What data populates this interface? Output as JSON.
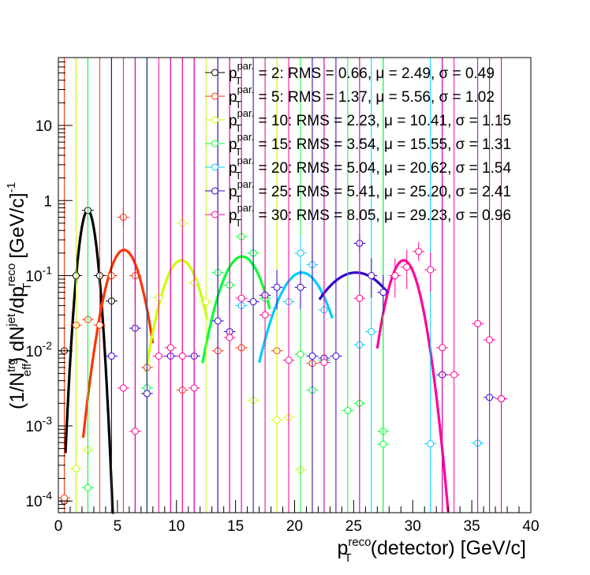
{
  "chart_data": {
    "type": "scatter",
    "title": "",
    "xlabel": {
      "main": "p",
      "sub": "T",
      "sup": "reco",
      "rest": "(detector) [GeV/c]"
    },
    "ylabel": {
      "pre": "(1/N",
      "sup1": "trg",
      "sub1": "eff",
      "mid1": ") dN",
      "sup2": "jet",
      "mid2": "/dp",
      "sup3": "reco",
      "sub3": "T",
      "mid3": " [GeV/c]",
      "sup4": "-1"
    },
    "xlim": [
      0,
      40
    ],
    "ylim": [
      7e-05,
      80
    ],
    "yscale": "log",
    "grid": false,
    "legend_position": "top-right",
    "x_ticks": [
      0,
      5,
      10,
      15,
      20,
      25,
      30,
      35,
      40
    ],
    "x_tick_labels": [
      "0",
      "5",
      "10",
      "15",
      "20",
      "25",
      "30",
      "35",
      "40"
    ],
    "y_ticks": [
      0.0001,
      0.001,
      0.01,
      0.1,
      1,
      10
    ],
    "y_tick_labels": [
      {
        "base": "10",
        "exp": "-4"
      },
      {
        "base": "10",
        "exp": "-3"
      },
      {
        "base": "10",
        "exp": "-2"
      },
      {
        "base": "10",
        "exp": "-1"
      },
      {
        "base": "1",
        "exp": ""
      },
      {
        "base": "10",
        "exp": ""
      }
    ],
    "series": [
      {
        "name": "= 2: RMS = 0.66, μ = 2.49, σ = 0.49",
        "legend_symbol": {
          "main": "p",
          "sub": "T",
          "sup": "par."
        },
        "color": "#000000",
        "fit": {
          "mu": 2.49,
          "sigma": 0.49,
          "amp": 0.74,
          "range": [
            0.6,
            4.7
          ]
        },
        "points": [
          {
            "x": 0.5,
            "y": 0.0001
          },
          {
            "x": 0.5,
            "y": 0.01
          },
          {
            "x": 1.5,
            "y": 0.1
          },
          {
            "x": 2.5,
            "y": 0.74
          },
          {
            "x": 3.5,
            "y": 0.1
          },
          {
            "x": 4.5,
            "y": 0.046
          }
        ]
      },
      {
        "name": "= 5: RMS = 1.37, μ = 5.56, σ = 1.02",
        "legend_symbol": {
          "main": "p",
          "sub": "T",
          "sup": "par."
        },
        "color": "#ff3300",
        "fit": {
          "mu": 5.56,
          "sigma": 1.02,
          "amp": 0.22,
          "range": [
            2.1,
            8.0
          ]
        },
        "points": [
          {
            "x": 1.5,
            "y": 0.022
          },
          {
            "x": 2.5,
            "y": 0.026
          },
          {
            "x": 3.5,
            "y": 0.022
          },
          {
            "x": 4.5,
            "y": 0.1
          },
          {
            "x": 5.5,
            "y": 0.6
          },
          {
            "x": 6.5,
            "y": 0.1
          },
          {
            "x": 7.5,
            "y": 0.006
          },
          {
            "x": 10.5,
            "y": 0.003
          },
          {
            "x": 13.5,
            "y": 0.01
          },
          {
            "x": 15.5,
            "y": 0.011
          },
          {
            "x": 18.5,
            "y": 0.01
          },
          {
            "x": 21.5,
            "y": 0.0068
          },
          {
            "x": 0.5,
            "y": 0.00011
          }
        ]
      },
      {
        "name": "= 10: RMS = 2.23, μ = 10.41, σ = 1.15",
        "legend_symbol": {
          "main": "p",
          "sub": "T",
          "sup": "par."
        },
        "color": "#ccff00",
        "fit": {
          "mu": 10.41,
          "sigma": 1.15,
          "amp": 0.16,
          "range": [
            7.4,
            12.6
          ]
        },
        "points": [
          {
            "x": 1.5,
            "y": 0.00027
          },
          {
            "x": 2.5,
            "y": 0.00048
          },
          {
            "x": 7.5,
            "y": 0.0027
          },
          {
            "x": 8.5,
            "y": 0.051
          },
          {
            "x": 10.5,
            "y": 0.5
          },
          {
            "x": 11.5,
            "y": 0.08
          },
          {
            "x": 12.5,
            "y": 0.045
          },
          {
            "x": 16.5,
            "y": 0.0022
          },
          {
            "x": 18.5,
            "y": 0.0012
          },
          {
            "x": 19.5,
            "y": 0.0013
          },
          {
            "x": 20.5,
            "y": 0.00026
          }
        ]
      },
      {
        "name": "= 15: RMS = 3.54, μ = 15.55, σ = 1.31",
        "legend_symbol": {
          "main": "p",
          "sub": "T",
          "sup": "par."
        },
        "color": "#00ff33",
        "fit": {
          "mu": 15.55,
          "sigma": 1.31,
          "amp": 0.18,
          "range": [
            12.2,
            17.9
          ]
        },
        "points": [
          {
            "x": 2.5,
            "y": 0.00015
          },
          {
            "x": 7.5,
            "y": 0.0032
          },
          {
            "x": 13.5,
            "y": 0.11
          },
          {
            "x": 14.5,
            "y": 0.075
          },
          {
            "x": 15.5,
            "y": 0.33
          },
          {
            "x": 16.5,
            "y": 0.2
          },
          {
            "x": 17.5,
            "y": 0.05
          },
          {
            "x": 20.5,
            "y": 0.009
          },
          {
            "x": 21.5,
            "y": 0.003
          },
          {
            "x": 22.5,
            "y": 0.0075
          },
          {
            "x": 24.5,
            "y": 0.0016
          },
          {
            "x": 25.5,
            "y": 0.002
          },
          {
            "x": 27.5,
            "y": 0.00085
          },
          {
            "x": 27.5,
            "y": 0.00057
          }
        ]
      },
      {
        "name": "= 20: RMS = 5.04, μ = 20.62, σ = 1.54",
        "legend_symbol": {
          "main": "p",
          "sub": "T",
          "sup": "par."
        },
        "color": "#00ccff",
        "fit": {
          "mu": 20.62,
          "sigma": 1.54,
          "amp": 0.11,
          "range": [
            17.0,
            23.2
          ]
        },
        "points": [
          {
            "x": 15.5,
            "y": 0.04
          },
          {
            "x": 19.5,
            "y": 0.045
          },
          {
            "x": 20.5,
            "y": 0.2
          },
          {
            "x": 21.5,
            "y": 0.14
          },
          {
            "x": 22.5,
            "y": 0.035
          },
          {
            "x": 25.5,
            "y": 0.012
          },
          {
            "x": 26.5,
            "y": 0.018
          },
          {
            "x": 31.5,
            "y": 0.00058
          },
          {
            "x": 35.5,
            "y": 0.00059
          }
        ]
      },
      {
        "name": "= 25: RMS = 5.41, μ = 25.20, σ = 2.41",
        "legend_symbol": {
          "main": "p",
          "sub": "T",
          "sup": "par."
        },
        "color": "#3300cc",
        "fit": {
          "mu": 25.2,
          "sigma": 2.41,
          "amp": 0.11,
          "range": [
            22.1,
            27.8
          ]
        },
        "points": [
          {
            "x": 4.5,
            "y": 0.0085
          },
          {
            "x": 6.5,
            "y": 0.02
          },
          {
            "x": 7.5,
            "y": 0.0027
          },
          {
            "x": 9.5,
            "y": 0.0085
          },
          {
            "x": 11.5,
            "y": 0.0085
          },
          {
            "x": 13.5,
            "y": 0.025
          },
          {
            "x": 14.5,
            "y": 0.018
          },
          {
            "x": 16.5,
            "y": 0.045
          },
          {
            "x": 17.5,
            "y": 0.055
          },
          {
            "x": 18.5,
            "y": 0.07
          },
          {
            "x": 20.5,
            "y": 0.07
          },
          {
            "x": 21.5,
            "y": 0.0085
          },
          {
            "x": 22.5,
            "y": 0.008
          },
          {
            "x": 23.5,
            "y": 0.0085
          },
          {
            "x": 25.5,
            "y": 0.27
          },
          {
            "x": 26.5,
            "y": 0.1
          },
          {
            "x": 27.5,
            "y": 0.06
          },
          {
            "x": 32.5,
            "y": 0.0048
          },
          {
            "x": 36.5,
            "y": 0.0024
          },
          {
            "x": 37.5,
            "y": 0.0023
          }
        ]
      },
      {
        "name": "= 30: RMS = 8.05, μ = 29.23, σ = 0.96",
        "legend_symbol": {
          "main": "p",
          "sub": "T",
          "sup": "par."
        },
        "color": "#ff0099",
        "fit": {
          "mu": 29.23,
          "sigma": 0.96,
          "amp": 0.16,
          "range": [
            27.0,
            33.0
          ]
        },
        "points": [
          {
            "x": 5.5,
            "y": 0.0032
          },
          {
            "x": 6.5,
            "y": 0.00085
          },
          {
            "x": 8.5,
            "y": 0.0085
          },
          {
            "x": 9.5,
            "y": 0.011
          },
          {
            "x": 10.5,
            "y": 0.0085
          },
          {
            "x": 11.5,
            "y": 0.0032
          },
          {
            "x": 14.5,
            "y": 0.015
          },
          {
            "x": 15.5,
            "y": 0.05
          },
          {
            "x": 17.5,
            "y": 0.03
          },
          {
            "x": 19.5,
            "y": 0.0075
          },
          {
            "x": 22.5,
            "y": 0.007
          },
          {
            "x": 25.5,
            "y": 0.05
          },
          {
            "x": 28.5,
            "y": 0.1
          },
          {
            "x": 29.5,
            "y": 0.13
          },
          {
            "x": 30.5,
            "y": 0.21
          },
          {
            "x": 31.5,
            "y": 0.12
          },
          {
            "x": 32.5,
            "y": 0.011
          },
          {
            "x": 33.5,
            "y": 0.0048
          },
          {
            "x": 35.5,
            "y": 0.023
          },
          {
            "x": 36.5,
            "y": 0.014
          },
          {
            "x": 37.5,
            "y": 0.0023
          }
        ]
      }
    ]
  }
}
